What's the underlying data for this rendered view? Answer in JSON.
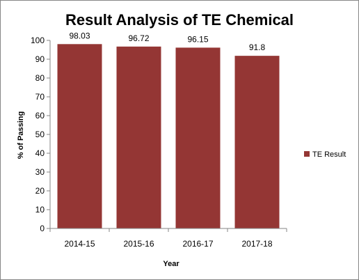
{
  "chart_data": {
    "type": "bar",
    "title": "Result Analysis of TE Chemical",
    "xlabel": "Year",
    "ylabel": "% of Passing",
    "categories": [
      "2014-15",
      "2015-16",
      "2016-17",
      "2017-18"
    ],
    "series": [
      {
        "name": "TE Result",
        "values": [
          98.03,
          96.72,
          96.15,
          91.8
        ],
        "data_labels": [
          "98.03",
          "96.72",
          "96.15",
          "91.8"
        ]
      }
    ],
    "ylim": [
      0,
      100
    ],
    "yticks": [
      0,
      10,
      20,
      30,
      40,
      50,
      60,
      70,
      80,
      90,
      100
    ],
    "grid": false,
    "legend_position": "right",
    "colors": {
      "bar": "#943634",
      "axis": "#868686",
      "border": "#868686"
    }
  }
}
